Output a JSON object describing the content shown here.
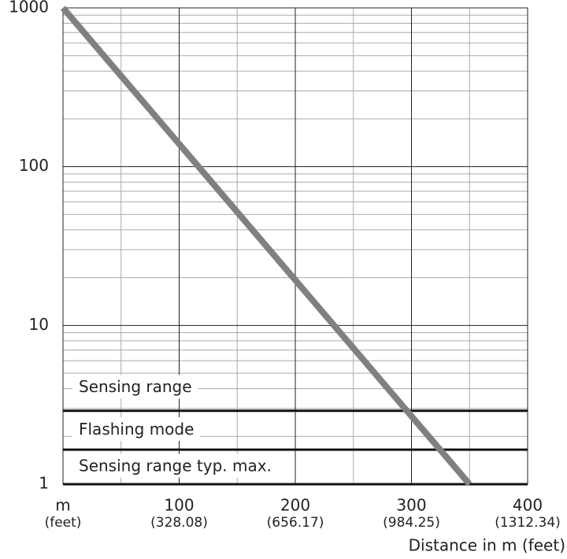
{
  "chart_data": {
    "type": "line",
    "xlabel": "Distance in m (feet)",
    "x_sublabels": [
      "(feet)",
      "(328.08)",
      "(656.17)",
      "(984.25)",
      "(1312.34)"
    ],
    "series": [
      {
        "color": "#808080",
        "x": [
          0,
          350
        ],
        "values": [
          1000,
          1
        ]
      }
    ],
    "xlim": [
      0,
      400
    ],
    "xticks": [
      {
        "value": 0,
        "label": "m"
      },
      100,
      200,
      300,
      400
    ],
    "ylim": [
      1,
      1000
    ],
    "yticks": [
      1,
      10,
      100,
      1000
    ],
    "ylog": true,
    "grid": true,
    "minor_grid": true,
    "thresholds": [
      2.9,
      1.65
    ],
    "zones": [
      "Sensing range",
      "Flashing mode",
      "Sensing range typ. max."
    ]
  }
}
